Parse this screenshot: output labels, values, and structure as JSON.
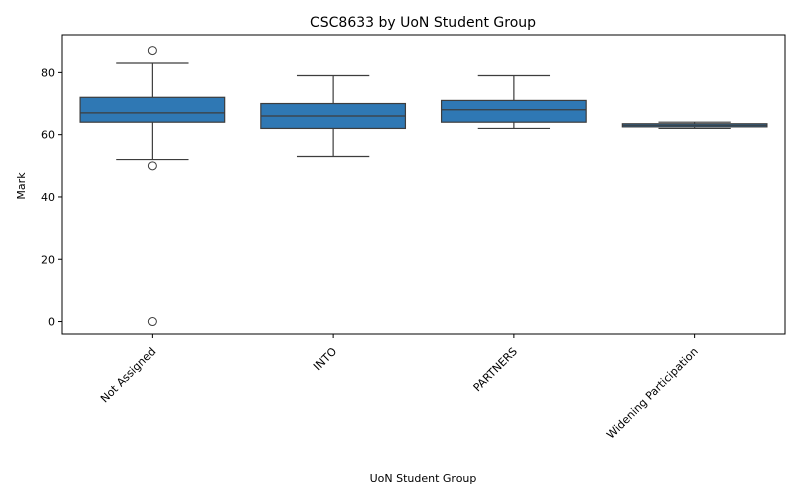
{
  "chart_data": {
    "type": "boxplot",
    "title": "CSC8633 by UoN Student Group",
    "xlabel": "UoN Student Group",
    "ylabel": "Mark",
    "ylim": [
      -4,
      92
    ],
    "yticks": [
      0,
      20,
      40,
      60,
      80
    ],
    "color": "#2f78b4",
    "categories": [
      "Not Assigned",
      "INTO",
      "PARTNERS",
      "Widening Participation"
    ],
    "boxes": [
      {
        "whislo": 52,
        "q1": 64,
        "med": 67,
        "q3": 72,
        "whishi": 83,
        "fliers": [
          87,
          50,
          0
        ]
      },
      {
        "whislo": 53,
        "q1": 62,
        "med": 66,
        "q3": 70,
        "whishi": 79,
        "fliers": []
      },
      {
        "whislo": 62,
        "q1": 64,
        "med": 68,
        "q3": 71,
        "whishi": 79,
        "fliers": []
      },
      {
        "whislo": 62,
        "q1": 62.5,
        "med": 63,
        "q3": 63.5,
        "whishi": 64,
        "fliers": []
      }
    ]
  }
}
